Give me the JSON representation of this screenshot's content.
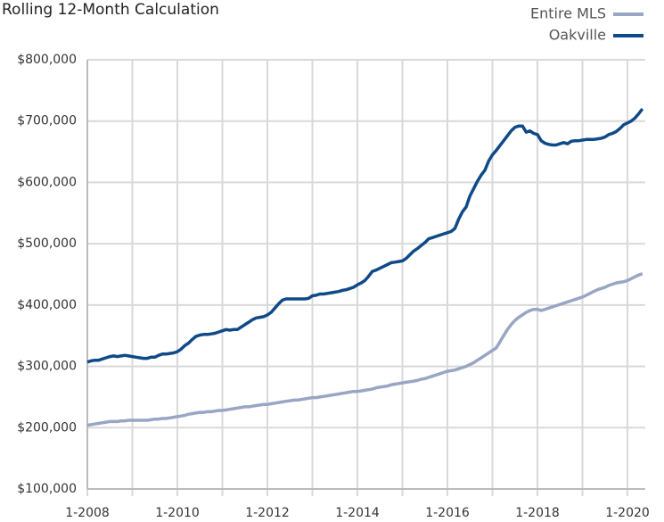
{
  "chart_data": {
    "type": "line",
    "title": "Rolling 12-Month Calculation",
    "categories": [
      "1-2008",
      null,
      null,
      null,
      null,
      null,
      null,
      null,
      null,
      null,
      null,
      null,
      null,
      null,
      null,
      null,
      null,
      null,
      null,
      null,
      null,
      null,
      null,
      null,
      "1-2010",
      null,
      null,
      null,
      null,
      null,
      null,
      null,
      null,
      null,
      null,
      null,
      null,
      null,
      null,
      null,
      null,
      null,
      null,
      null,
      null,
      null,
      null,
      null,
      "1-2012",
      null,
      null,
      null,
      null,
      null,
      null,
      null,
      null,
      null,
      null,
      null,
      null,
      null,
      null,
      null,
      null,
      null,
      null,
      null,
      null,
      null,
      null,
      null,
      "1-2014",
      null,
      null,
      null,
      null,
      null,
      null,
      null,
      null,
      null,
      null,
      null,
      null,
      null,
      null,
      null,
      null,
      null,
      null,
      null,
      null,
      null,
      null,
      null,
      "1-2016",
      null,
      null,
      null,
      null,
      null,
      null,
      null,
      null,
      null,
      null,
      null,
      null,
      null,
      null,
      null,
      null,
      null,
      null,
      null,
      null,
      null,
      null,
      null,
      "1-2018",
      null,
      null,
      null,
      null,
      null,
      null,
      null,
      null,
      null,
      null,
      null,
      null,
      null,
      null,
      null,
      null,
      null,
      null,
      null,
      null,
      null,
      null,
      null,
      "1-2020",
      null,
      null,
      null,
      null
    ],
    "series": [
      {
        "name": "Entire MLS",
        "color": "#98a6c4",
        "values": [
          204000,
          205000,
          206000,
          207000,
          208000,
          209000,
          210000,
          210000,
          210000,
          211000,
          211000,
          212000,
          212000,
          212000,
          212000,
          212000,
          212000,
          213000,
          214000,
          214000,
          215000,
          215000,
          216000,
          217000,
          218000,
          219000,
          220000,
          222000,
          223000,
          224000,
          225000,
          225000,
          226000,
          226000,
          227000,
          228000,
          228000,
          229000,
          230000,
          231000,
          232000,
          233000,
          234000,
          234000,
          235000,
          236000,
          237000,
          238000,
          238000,
          239000,
          240000,
          241000,
          242000,
          243000,
          244000,
          245000,
          245000,
          246000,
          247000,
          248000,
          249000,
          249000,
          250000,
          251000,
          252000,
          253000,
          254000,
          255000,
          256000,
          257000,
          258000,
          259000,
          259000,
          260000,
          261000,
          262000,
          263000,
          265000,
          266000,
          267000,
          268000,
          270000,
          271000,
          272000,
          273000,
          274000,
          275000,
          276000,
          277000,
          279000,
          280000,
          282000,
          284000,
          286000,
          288000,
          290000,
          292000,
          293000,
          294000,
          296000,
          298000,
          300000,
          303000,
          306000,
          310000,
          314000,
          318000,
          322000,
          326000,
          330000,
          340000,
          350000,
          360000,
          368000,
          375000,
          380000,
          384000,
          388000,
          391000,
          393000,
          393000,
          391000,
          393000,
          395000,
          397000,
          399000,
          401000,
          403000,
          405000,
          407000,
          409000,
          411000,
          413000,
          416000,
          419000,
          422000,
          425000,
          427000,
          429000,
          432000,
          434000,
          436000,
          437000,
          438000,
          440000,
          443000,
          446000,
          449000,
          451000
        ]
      },
      {
        "name": "Oakville",
        "color": "#0f4a88",
        "values": [
          307000,
          309000,
          310000,
          310000,
          312000,
          314000,
          316000,
          317000,
          316000,
          317000,
          318000,
          317000,
          316000,
          315000,
          314000,
          313000,
          313000,
          315000,
          315000,
          318000,
          320000,
          320000,
          321000,
          322000,
          324000,
          328000,
          334000,
          338000,
          344000,
          349000,
          351000,
          352000,
          352000,
          353000,
          354000,
          356000,
          358000,
          360000,
          359000,
          360000,
          360000,
          364000,
          368000,
          372000,
          376000,
          379000,
          380000,
          381000,
          384000,
          388000,
          395000,
          402000,
          408000,
          410000,
          410000,
          410000,
          410000,
          410000,
          410000,
          411000,
          415000,
          416000,
          418000,
          418000,
          419000,
          420000,
          421000,
          422000,
          424000,
          425000,
          427000,
          429000,
          433000,
          436000,
          440000,
          447000,
          455000,
          457000,
          460000,
          463000,
          466000,
          469000,
          470000,
          471000,
          472000,
          476000,
          482000,
          488000,
          492000,
          497000,
          502000,
          508000,
          510000,
          512000,
          514000,
          516000,
          518000,
          520000,
          525000,
          540000,
          552000,
          560000,
          578000,
          590000,
          602000,
          612000,
          620000,
          635000,
          645000,
          652000,
          660000,
          668000,
          676000,
          684000,
          690000,
          692000,
          692000,
          682000,
          684000,
          680000,
          678000,
          668000,
          664000,
          662000,
          661000,
          661000,
          663000,
          665000,
          663000,
          667000,
          668000,
          668000,
          669000,
          670000,
          670000,
          670000,
          671000,
          672000,
          674000,
          678000,
          680000,
          683000,
          688000,
          694000,
          697000,
          700000,
          705000,
          712000,
          720000
        ]
      }
    ],
    "ylim": [
      100000,
      800000
    ],
    "yticks": [
      {
        "value": 100000,
        "label": "$100,000"
      },
      {
        "value": 200000,
        "label": "$200,000"
      },
      {
        "value": 300000,
        "label": "$300,000"
      },
      {
        "value": 400000,
        "label": "$400,000"
      },
      {
        "value": 500000,
        "label": "$500,000"
      },
      {
        "value": 600000,
        "label": "$600,000"
      },
      {
        "value": 700000,
        "label": "$700,000"
      },
      {
        "value": 800000,
        "label": "$800,000"
      }
    ],
    "grid": true,
    "legend": "top-right"
  }
}
